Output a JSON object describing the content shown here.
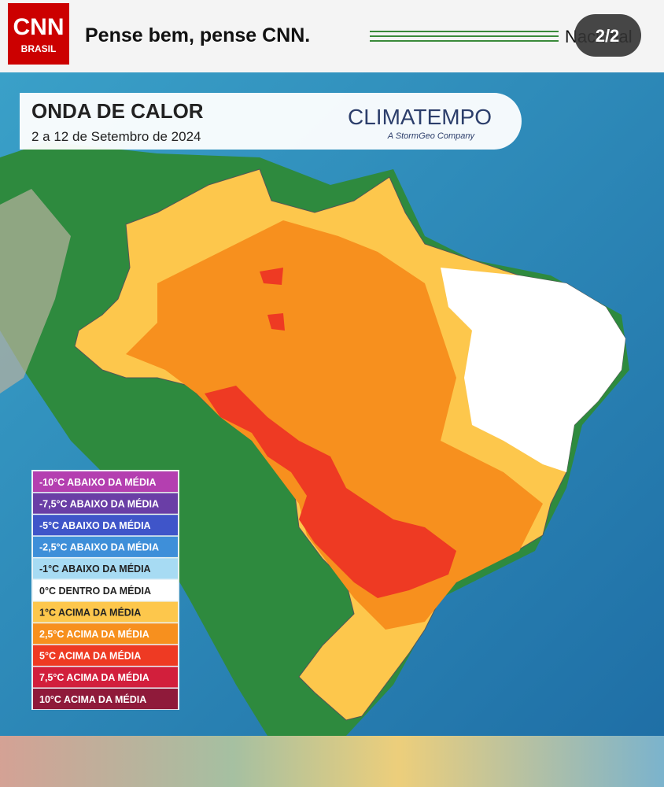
{
  "header": {
    "logo_top": "CNN",
    "logo_bottom": "BRASIL",
    "slogan": "Pense bem, pense CNN.",
    "section": "Nacional",
    "page_indicator": "2/2"
  },
  "map": {
    "title": "ONDA DE CALOR",
    "subtitle": "2 a 12 de Setembro de 2024",
    "brand": "CLIMATEMPO",
    "brand_tagline": "A StormGeo Company",
    "legend": [
      {
        "label": "-10°C ABAIXO DA MÉDIA",
        "color": "#b43fb0"
      },
      {
        "label": "-7,5°C ABAIXO DA MÉDIA",
        "color": "#6a3ea6"
      },
      {
        "label": "-5°C ABAIXO DA MÉDIA",
        "color": "#3f55c9"
      },
      {
        "label": "-2,5°C ABAIXO DA MÉDIA",
        "color": "#3e8fd9"
      },
      {
        "label": "-1°C ABAIXO DA MÉDIA",
        "color": "#a7dbf3"
      },
      {
        "label": "0°C DENTRO DA MÉDIA",
        "color": "#ffffff"
      },
      {
        "label": "1°C ACIMA DA MÉDIA",
        "color": "#fdc74c"
      },
      {
        "label": "2,5°C ACIMA DA MÉDIA",
        "color": "#f7901e"
      },
      {
        "label": "5°C ACIMA DA MÉDIA",
        "color": "#ee3a23"
      },
      {
        "label": "7,5°C ACIMA DA MÉDIA",
        "color": "#d21f3c"
      },
      {
        "label": "10°C ACIMA DA MÉDIA",
        "color": "#8f1a3a"
      }
    ]
  }
}
